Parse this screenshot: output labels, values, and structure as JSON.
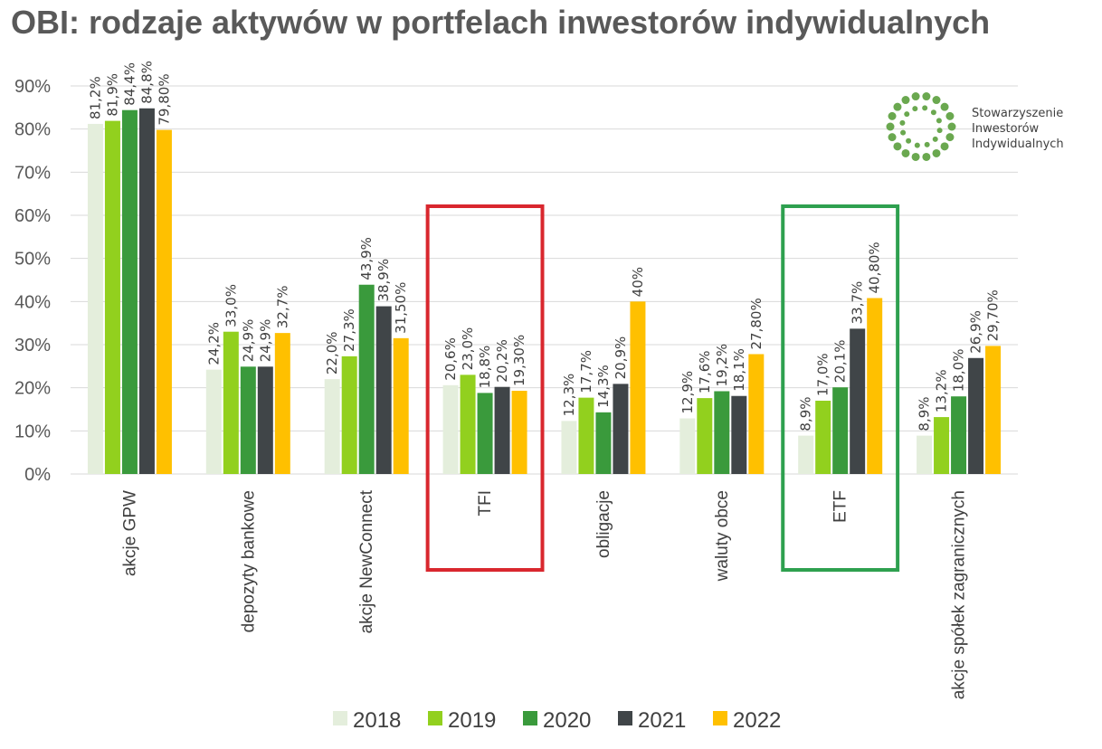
{
  "title": "OBI: rodzaje aktywów w portfelach inwestorów indywidualnych",
  "logo": {
    "lines": [
      "Stowarzyszenie",
      "Inwestorów",
      "Indywidualnych"
    ],
    "color": "#6aa84f"
  },
  "highlights": [
    {
      "category": "TFI",
      "color": "#d9272e"
    },
    {
      "category": "ETF",
      "color": "#2ea04f"
    }
  ],
  "chart_data": {
    "type": "bar",
    "categories": [
      "akcje GPW",
      "depozyty bankowe",
      "akcje NewConnect",
      "TFI",
      "obligacje",
      "waluty obce",
      "ETF",
      "akcje spółek zagranicznych"
    ],
    "ylim": [
      0,
      90
    ],
    "yticks": [
      0,
      10,
      20,
      30,
      40,
      50,
      60,
      70,
      80,
      90
    ],
    "ytick_labels": [
      "0%",
      "10%",
      "20%",
      "30%",
      "40%",
      "50%",
      "60%",
      "70%",
      "80%",
      "90%"
    ],
    "grid": true,
    "legend_position": "bottom",
    "series": [
      {
        "name": "2018",
        "color": "#e4eedc",
        "values": [
          81.2,
          24.2,
          22.0,
          20.6,
          12.3,
          12.9,
          8.9,
          8.9
        ],
        "labels": [
          "81,2%",
          "24,2%",
          "22,0%",
          "20,6%",
          "12,3%",
          "12,9%",
          "8,9%",
          "8,9%"
        ]
      },
      {
        "name": "2019",
        "color": "#92d01e",
        "values": [
          81.9,
          33.0,
          27.3,
          23.0,
          17.7,
          17.6,
          17.0,
          13.2
        ],
        "labels": [
          "81,9%",
          "33,0%",
          "27,3%",
          "23,0%",
          "17,7%",
          "17,6%",
          "17,0%",
          "13,2%"
        ]
      },
      {
        "name": "2020",
        "color": "#3a9a3c",
        "values": [
          84.4,
          24.9,
          43.9,
          18.8,
          14.3,
          19.2,
          20.1,
          18.0
        ],
        "labels": [
          "84,4%",
          "24,9%",
          "43,9%",
          "18,8%",
          "14,3%",
          "19,2%",
          "20,1%",
          "18,0%"
        ]
      },
      {
        "name": "2021",
        "color": "#404548",
        "values": [
          84.8,
          24.9,
          38.9,
          20.2,
          20.9,
          18.1,
          33.7,
          26.9
        ],
        "labels": [
          "84,8%",
          "24,9%",
          "38,9%",
          "20,2%",
          "20,9%",
          "18,1%",
          "33,7%",
          "26,9%"
        ]
      },
      {
        "name": "2022",
        "color": "#ffc000",
        "values": [
          79.8,
          32.7,
          31.5,
          19.3,
          40.0,
          27.8,
          40.8,
          29.7
        ],
        "labels": [
          "79,80%",
          "32,7%",
          "31,50%",
          "19,30%",
          "40%",
          "27,80%",
          "40,80%",
          "29,70%"
        ]
      }
    ]
  }
}
